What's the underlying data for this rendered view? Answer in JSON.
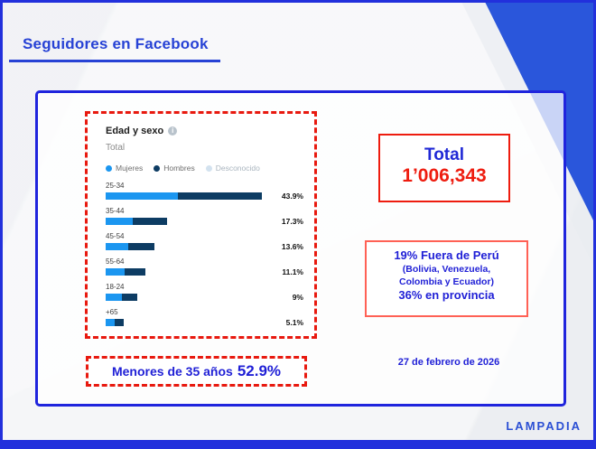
{
  "header": {
    "title": "Seguidores en Facebook"
  },
  "chart_data": {
    "type": "bar",
    "orientation": "horizontal",
    "title": "Edad y sexo",
    "subtitle": "Total",
    "legend_items": [
      {
        "label": "Mujeres",
        "color": "#1b96f0"
      },
      {
        "label": "Hombres",
        "color": "#0d3c63"
      },
      {
        "label": "Desconocido",
        "color": "#d3e2ef",
        "muted": true
      }
    ],
    "categories": [
      "25-34",
      "35-44",
      "45-54",
      "55-64",
      "18-24",
      "+65"
    ],
    "values": [
      43.9,
      17.3,
      13.6,
      11.1,
      9,
      5.1
    ],
    "value_labels": [
      "43.9%",
      "17.3%",
      "13.6%",
      "11.1%",
      "9%",
      "5.1%"
    ],
    "series": [
      {
        "name": "Mujeres",
        "values": [
          20.2,
          7.6,
          6.4,
          5.2,
          4.5,
          2.5
        ]
      },
      {
        "name": "Hombres",
        "values": [
          23.7,
          9.7,
          7.2,
          5.9,
          4.5,
          2.6
        ]
      }
    ],
    "xlim": [
      0,
      45
    ],
    "grid": false,
    "legend_position": "top"
  },
  "total_box": {
    "label": "Total",
    "value": "1’006,343"
  },
  "stats_box": {
    "lines": [
      "19% Fuera de Perú",
      "(Bolivia, Venezuela,",
      "Colombia y Ecuador)",
      "36% en provincia"
    ]
  },
  "highlight": {
    "text": "Menores de 35 años",
    "value": "52.9%"
  },
  "footer": {
    "date": "27 de febrero de 2026",
    "brand": "LAMPADIA"
  },
  "colors": {
    "accent_blue": "#2230dc",
    "title_blue": "#2742d5",
    "text_blue": "#1f1fd6",
    "red": "#ee1c0f",
    "salmon_border": "#ff6155",
    "corner_blue": "#2a56db",
    "mujeres": "#1b96f0",
    "hombres": "#0d3c63",
    "desconocido": "#d3e2ef"
  }
}
